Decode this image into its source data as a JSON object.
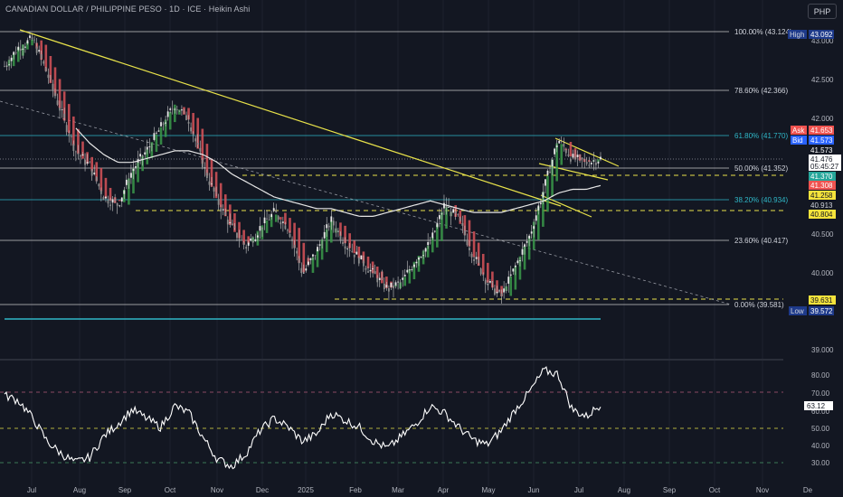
{
  "header": {
    "title": "CANADIAN DOLLAR / PHILIPPINE PESO · 1D · ICE · Heikin Ashi",
    "currency_button": "PHP"
  },
  "colors": {
    "background": "#131722",
    "bull": "#26a69a",
    "bear": "#ef5350",
    "trendline": "#e8e24a",
    "fib_teal": "#2fb7c7",
    "rsi_line": "#ffffff"
  },
  "price_axis": {
    "ticks": [
      "43.000",
      "42.500",
      "42.000",
      "40.500",
      "40.000",
      "39.000"
    ]
  },
  "badges": {
    "high_label": "High",
    "high_value": "43.092",
    "ask_label": "Ask",
    "ask_value": "41.653",
    "bid_label": "Bid",
    "bid_value": "41.573",
    "low_label": "Low",
    "low_value": "39.572",
    "price_1": "41.573",
    "price_2": "41.476",
    "countdown": "05:45:27",
    "price_3": "41.370",
    "price_4": "41.308",
    "price_5": "41.258",
    "price_6": "40.913",
    "price_7": "40.804",
    "price_8": "39.631"
  },
  "fib_levels": [
    {
      "label": "100.00% (43.124)"
    },
    {
      "label": "78.60% (42.366)"
    },
    {
      "label": "61.80% (41.770)"
    },
    {
      "label": "50.00% (41.352)"
    },
    {
      "label": "38.20% (40.934)"
    },
    {
      "label": "23.60% (40.417)"
    },
    {
      "label": "0.00% (39.581)"
    }
  ],
  "rsi_axis": {
    "ticks": [
      "80.00",
      "70.00",
      "60.00",
      "50.00",
      "40.00",
      "30.00"
    ],
    "current": "63.12"
  },
  "time_axis": [
    "Jul",
    "Aug",
    "Sep",
    "Oct",
    "Nov",
    "Dec",
    "2025",
    "Feb",
    "Mar",
    "Apr",
    "May",
    "Jun",
    "Jul",
    "Aug",
    "Sep",
    "Oct",
    "Nov",
    "De"
  ],
  "chart_data": {
    "type": "line",
    "price_series_approx": [
      42.7,
      42.95,
      43.05,
      42.6,
      42.1,
      41.6,
      41.4,
      41.0,
      40.9,
      41.35,
      41.6,
      41.9,
      42.2,
      42.0,
      41.4,
      40.95,
      40.6,
      40.35,
      40.6,
      40.8,
      40.6,
      40.0,
      40.3,
      40.7,
      40.4,
      40.2,
      40.0,
      39.8,
      39.9,
      40.2,
      40.4,
      40.9,
      40.7,
      40.25,
      39.9,
      39.7,
      40.1,
      40.5,
      41.1,
      41.75,
      41.5,
      41.45,
      41.5
    ],
    "sma_series_approx": [
      null,
      null,
      null,
      null,
      null,
      41.9,
      41.7,
      41.55,
      41.45,
      41.45,
      41.5,
      41.55,
      41.6,
      41.6,
      41.55,
      41.45,
      41.3,
      41.2,
      41.1,
      41.0,
      40.95,
      40.9,
      40.85,
      40.85,
      40.8,
      40.75,
      40.75,
      40.8,
      40.85,
      40.9,
      40.95,
      40.9,
      40.85,
      40.8,
      40.8,
      40.8,
      40.85,
      40.9,
      40.95,
      41.05,
      41.1,
      41.1,
      41.15
    ],
    "rsi_series_approx": [
      68,
      65,
      55,
      42,
      35,
      30,
      33,
      45,
      52,
      60,
      55,
      50,
      62,
      58,
      44,
      32,
      28,
      35,
      48,
      55,
      50,
      42,
      46,
      58,
      54,
      50,
      42,
      38,
      45,
      52,
      62,
      58,
      50,
      43,
      40,
      48,
      60,
      70,
      82,
      80,
      60,
      56,
      63
    ],
    "ylim_price": [
      39.0,
      43.2
    ],
    "ylim_rsi": [
      25,
      85
    ]
  }
}
